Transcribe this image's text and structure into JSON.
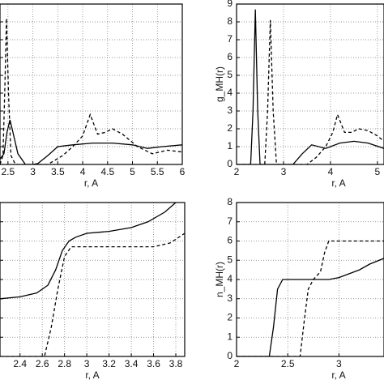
{
  "chart_data": [
    {
      "type": "line",
      "x_label": "r, A",
      "xlim": [
        2.34,
        6
      ],
      "xticks": [
        2.5,
        3,
        3.5,
        4,
        4.5,
        5,
        5.5,
        6
      ],
      "ylim": [
        0,
        9
      ],
      "yticks": [
        0,
        1,
        2,
        3,
        4,
        5,
        6,
        7,
        8,
        9
      ],
      "show_ytick_labels": false,
      "grid": true,
      "series": [
        {
          "color": "#000000",
          "style": "solid",
          "x": [
            2.34,
            2.42,
            2.48,
            2.54,
            2.6,
            2.7,
            2.85,
            3.0,
            3.1,
            3.3,
            3.5,
            3.8,
            4.2,
            4.6,
            5.0,
            5.3,
            5.6,
            6.0
          ],
          "values": [
            0.3,
            0.6,
            1.8,
            2.5,
            1.8,
            0.6,
            0,
            0,
            0.05,
            0.5,
            1.0,
            1.1,
            1.2,
            1.2,
            1.1,
            0.9,
            1.0,
            1.1
          ]
        },
        {
          "color": "#000000",
          "style": "dashed",
          "x": [
            2.34,
            2.4,
            2.44,
            2.47,
            2.51,
            2.56,
            2.65,
            3.3,
            3.6,
            3.8,
            4.0,
            4.15,
            4.3,
            4.45,
            4.6,
            4.8,
            5.1,
            5.4,
            5.7,
            6.0
          ],
          "values": [
            0,
            0.5,
            4.5,
            8.2,
            4.0,
            0.5,
            0,
            0,
            0.5,
            1.0,
            1.6,
            2.8,
            1.7,
            1.8,
            2.0,
            1.7,
            1.0,
            0.6,
            0.8,
            0.7
          ]
        }
      ]
    },
    {
      "type": "line",
      "x_label": "r, A",
      "y_label": "g_MH(r)",
      "xlim": [
        2,
        5.14
      ],
      "xticks": [
        2,
        3,
        4,
        5
      ],
      "ylim": [
        0,
        9
      ],
      "yticks": [
        0,
        1,
        2,
        3,
        4,
        5,
        6,
        7,
        8,
        9
      ],
      "show_ytick_labels": true,
      "grid": true,
      "series": [
        {
          "color": "#000000",
          "style": "solid",
          "x": [
            2,
            2.3,
            2.35,
            2.4,
            2.45,
            2.5,
            3.2,
            3.4,
            3.6,
            3.9,
            4.2,
            4.5,
            4.8,
            5.14
          ],
          "values": [
            0,
            0,
            3.0,
            8.7,
            3.0,
            0,
            0,
            0.6,
            1.1,
            0.9,
            1.2,
            1.3,
            1.2,
            0.9
          ]
        },
        {
          "color": "#000000",
          "style": "dashed",
          "x": [
            2,
            2.6,
            2.66,
            2.72,
            2.78,
            2.85,
            3.5,
            3.7,
            3.9,
            4.05,
            4.15,
            4.3,
            4.45,
            4.6,
            4.8,
            5.0,
            5.14
          ],
          "values": [
            0,
            0,
            3.0,
            8.1,
            3.0,
            0,
            0,
            0.4,
            1.0,
            1.8,
            2.8,
            1.8,
            1.8,
            2.0,
            1.9,
            1.6,
            1.3
          ]
        }
      ]
    },
    {
      "type": "line",
      "x_label": "r, A",
      "xlim": [
        2.22,
        3.88
      ],
      "xticks": [
        2.4,
        2.6,
        2.8,
        3,
        3.2,
        3.4,
        3.6,
        3.8
      ],
      "ylim": [
        0,
        8
      ],
      "yticks": [
        0,
        1,
        2,
        3,
        4,
        5,
        6,
        7,
        8
      ],
      "show_ytick_labels": false,
      "grid": true,
      "series": [
        {
          "color": "#000000",
          "style": "solid",
          "x": [
            2.22,
            2.4,
            2.55,
            2.65,
            2.72,
            2.78,
            2.84,
            2.9,
            3.0,
            3.2,
            3.4,
            3.55,
            3.7,
            3.8
          ],
          "values": [
            3.0,
            3.1,
            3.3,
            3.7,
            4.5,
            5.5,
            6.0,
            6.2,
            6.4,
            6.5,
            6.7,
            7.0,
            7.5,
            8.0
          ]
        },
        {
          "color": "#000000",
          "style": "dashed",
          "x": [
            2.22,
            2.62,
            2.68,
            2.74,
            2.8,
            2.86,
            3.0,
            3.4,
            3.6,
            3.75,
            3.88
          ],
          "values": [
            0,
            0,
            1.5,
            3.5,
            5.2,
            5.7,
            5.7,
            5.7,
            5.7,
            5.9,
            6.4
          ]
        }
      ]
    },
    {
      "type": "line",
      "x_label": "r, A",
      "y_label": "n_MH(r)",
      "xlim": [
        2,
        3.44
      ],
      "xticks": [
        2,
        2.5,
        3
      ],
      "ylim": [
        0,
        8
      ],
      "yticks": [
        0,
        1,
        2,
        3,
        4,
        5,
        6,
        7,
        8
      ],
      "show_ytick_labels": true,
      "grid": true,
      "series": [
        {
          "color": "#000000",
          "style": "solid",
          "x": [
            2,
            2.32,
            2.36,
            2.4,
            2.45,
            2.7,
            2.9,
            3.0,
            3.1,
            3.2,
            3.3,
            3.44
          ],
          "values": [
            0,
            0,
            1.5,
            3.5,
            4.0,
            4.0,
            4.0,
            4.1,
            4.3,
            4.5,
            4.8,
            5.1
          ]
        },
        {
          "color": "#000000",
          "style": "dashed",
          "x": [
            2,
            2.62,
            2.66,
            2.7,
            2.75,
            2.82,
            2.86,
            2.9,
            3.44
          ],
          "values": [
            0,
            0,
            1.8,
            3.5,
            4.0,
            4.4,
            5.4,
            6.0,
            6.0
          ]
        }
      ]
    }
  ]
}
